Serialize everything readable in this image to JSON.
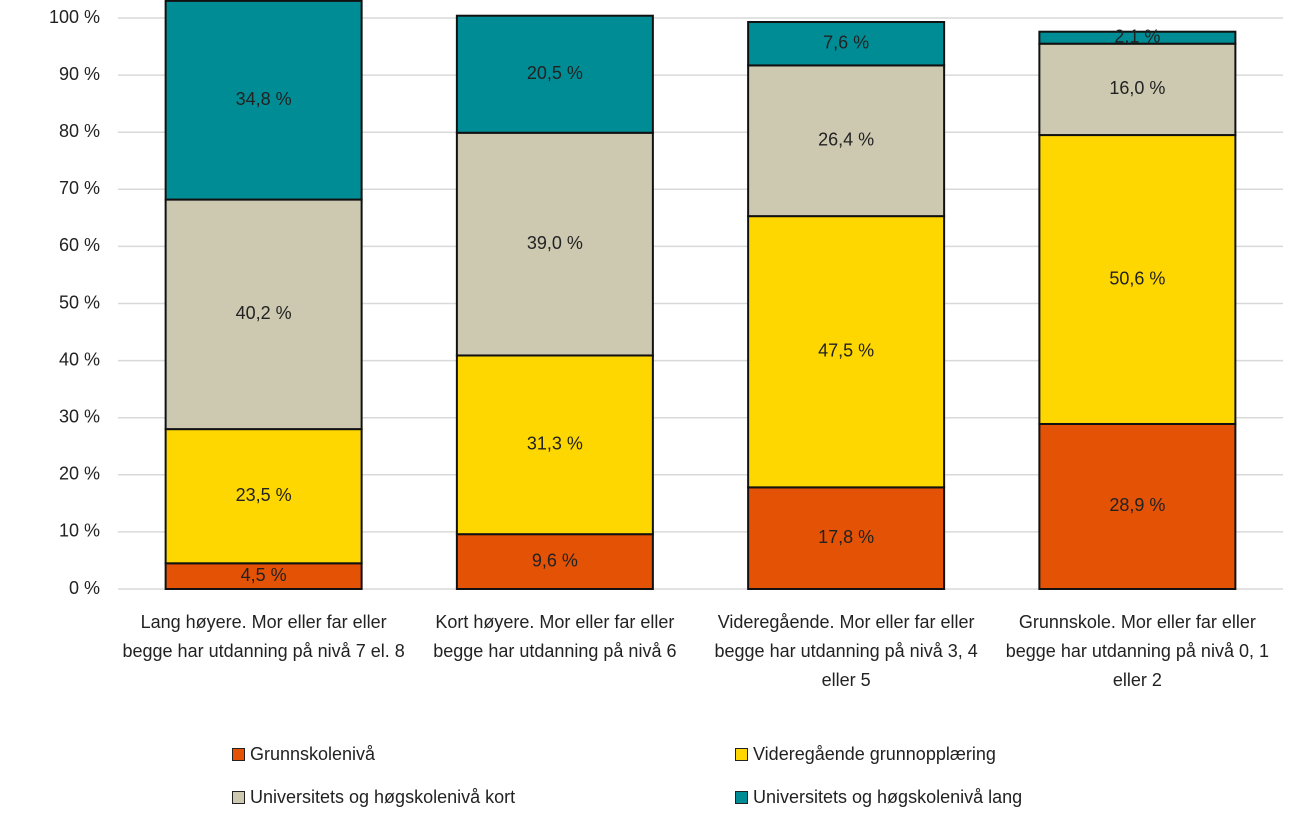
{
  "chart_data": {
    "type": "stacked_bar",
    "categories": [
      "Lang høyere. Mor eller far eller begge har utdanning på nivå 7 el. 8",
      "Kort høyere. Mor eller far eller begge har utdanning på nivå 6",
      "Videregående. Mor eller far eller begge har utdanning på nivå 3, 4 eller 5",
      "Grunnskole. Mor eller far eller begge har utdanning på nivå 0, 1 eller 2"
    ],
    "series": [
      {
        "name": "Grunnskolenivå",
        "color": "#e35205",
        "values": [
          4.5,
          9.6,
          17.8,
          28.9
        ],
        "value_labels": [
          "4,5 %",
          "9,6 %",
          "17,8 %",
          "28,9 %"
        ]
      },
      {
        "name": "Videregående grunnopplæring",
        "color": "#ffd700",
        "values": [
          23.5,
          31.3,
          47.5,
          50.6
        ],
        "value_labels": [
          "23,5 %",
          "31,3 %",
          "47,5 %",
          "50,6 %"
        ]
      },
      {
        "name": "Universitets og høgskolenivå kort",
        "color": "#cdc9b1",
        "values": [
          40.2,
          39.0,
          26.4,
          16.0
        ],
        "value_labels": [
          "40,2 %",
          "39,0 %",
          "26,4 %",
          "16,0 %"
        ]
      },
      {
        "name": "Universitets og høgskolenivå lang",
        "color": "#008c95",
        "values": [
          34.8,
          20.5,
          7.6,
          2.1
        ],
        "value_labels": [
          "34,8 %",
          "20,5 %",
          "7,6 %",
          "2,1 %"
        ]
      }
    ],
    "ylim": [
      0,
      100
    ],
    "yticks": [
      {
        "value": 0,
        "label": "0 %"
      },
      {
        "value": 10,
        "label": "10 %"
      },
      {
        "value": 20,
        "label": "20 %"
      },
      {
        "value": 30,
        "label": "30 %"
      },
      {
        "value": 40,
        "label": "40 %"
      },
      {
        "value": 50,
        "label": "50 %"
      },
      {
        "value": 60,
        "label": "60 %"
      },
      {
        "value": 70,
        "label": "70 %"
      },
      {
        "value": 80,
        "label": "80 %"
      },
      {
        "value": 90,
        "label": "90 %"
      },
      {
        "value": 100,
        "label": "100 %"
      }
    ],
    "grid": true,
    "legend": "bottom"
  }
}
